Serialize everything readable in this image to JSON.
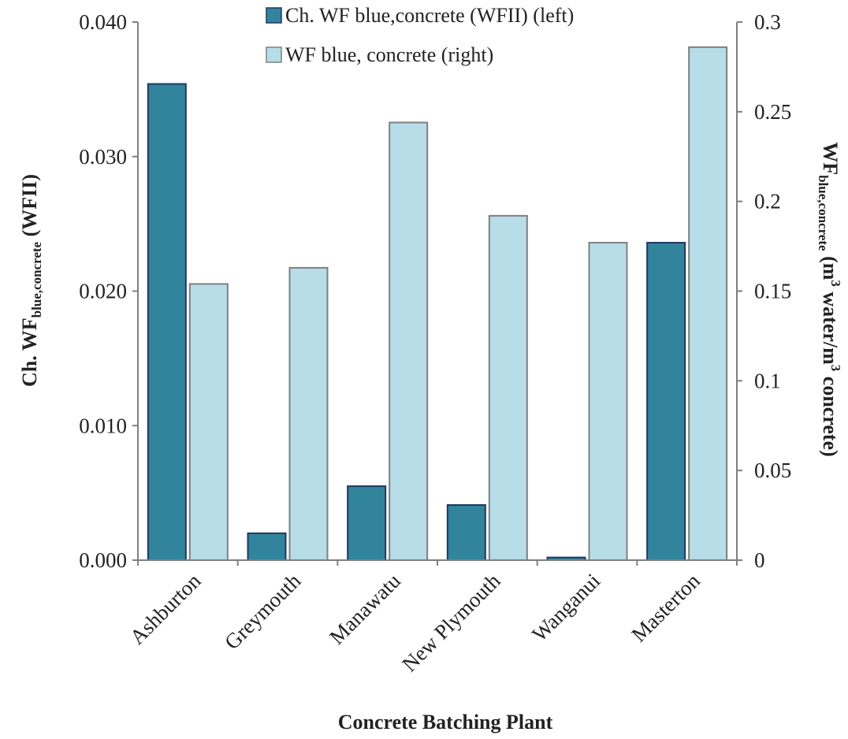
{
  "chart_data": {
    "type": "bar",
    "xlabel": "Concrete Batching Plant",
    "ylabel_left": {
      "main": "Ch. WF",
      "sub": "blue,concrete",
      "tail": " (WFII)"
    },
    "ylabel_right": {
      "main": "WF",
      "sub": "blue,concrete",
      "part2": " (m",
      "sup1": "3",
      "part3": " water/m",
      "sup2": "3",
      "part4": " concrete)"
    },
    "categories": [
      "Ashburton",
      "Greymouth",
      "Manawatu",
      "New Plymouth",
      "Wanganui",
      "Masterton"
    ],
    "series": [
      {
        "name": "Ch. WF blue,concrete (WFII) (left)",
        "axis": "left",
        "color": "#31849b",
        "values": [
          0.0354,
          0.002,
          0.0055,
          0.0041,
          0.0002,
          0.0236
        ]
      },
      {
        "name": "WF blue, concrete (right)",
        "axis": "right",
        "color": "#b7dde8",
        "values": [
          0.154,
          0.163,
          0.244,
          0.192,
          0.177,
          0.286
        ]
      }
    ],
    "ylim_left": [
      0,
      0.04
    ],
    "ylim_right": [
      0,
      0.3
    ],
    "yticks_left": [
      "0.000",
      "0.010",
      "0.020",
      "0.030",
      "0.040"
    ],
    "yticks_right": [
      "0",
      "0.05",
      "0.1",
      "0.15",
      "0.2",
      "0.25",
      "0.3"
    ],
    "grid": false,
    "legend_position": "top-center"
  }
}
